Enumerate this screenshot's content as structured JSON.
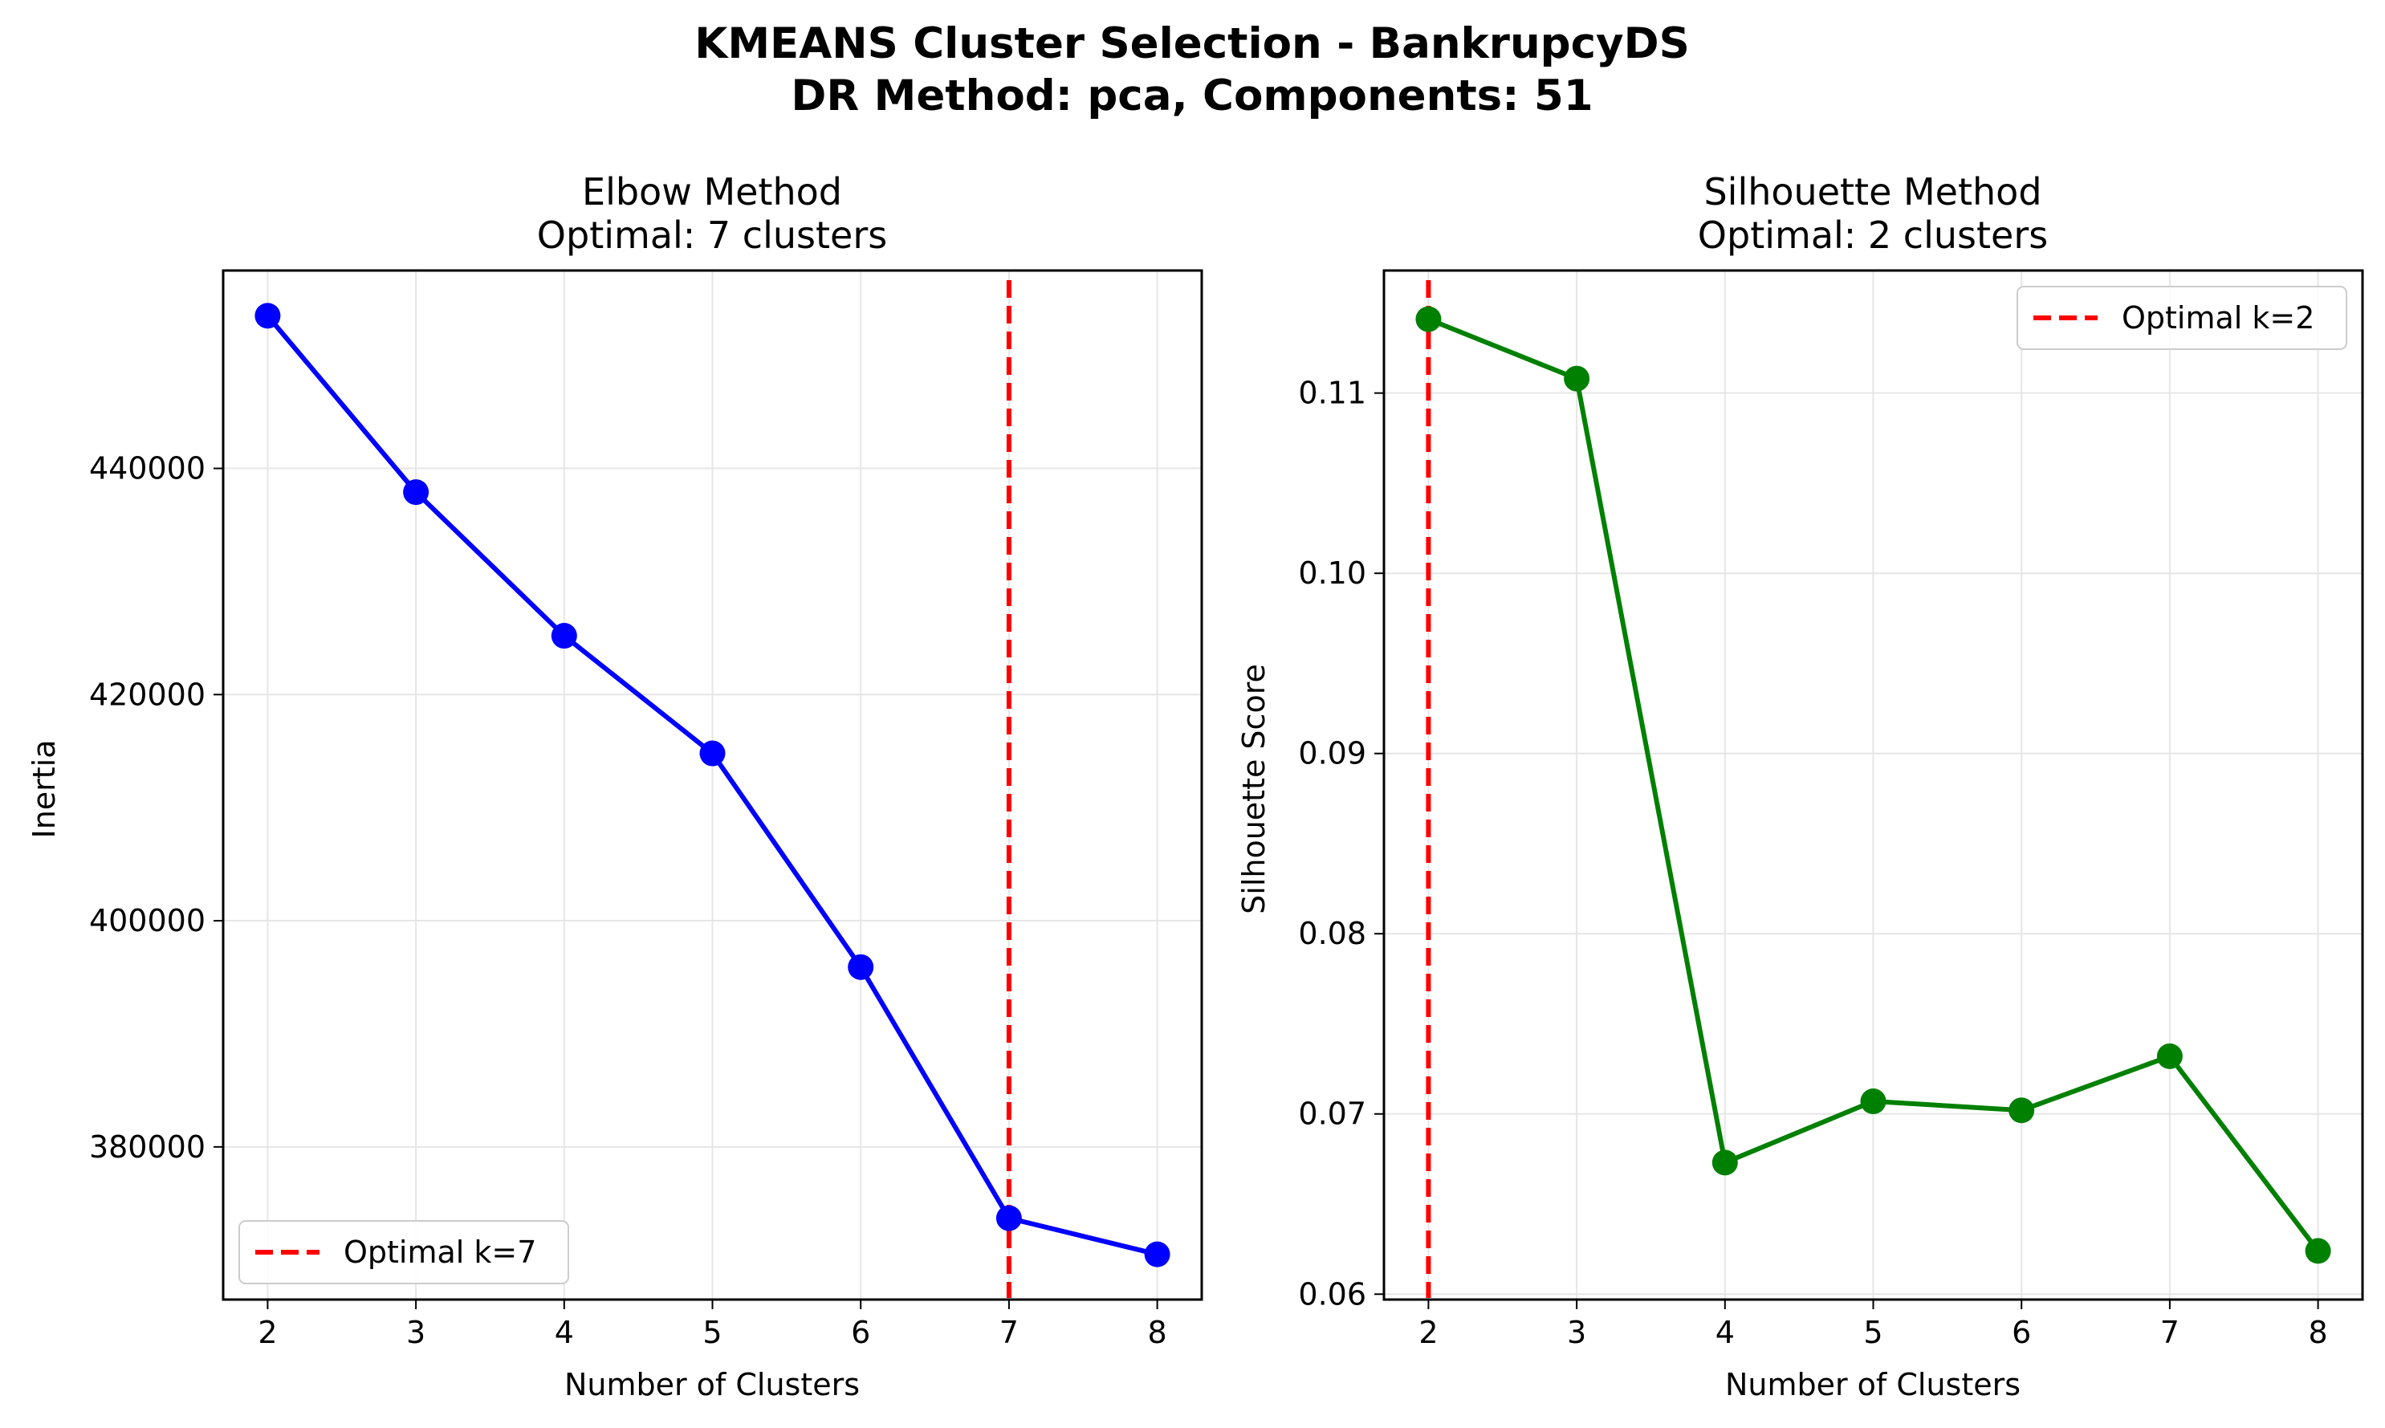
{
  "figure": {
    "suptitle_line1": "KMEANS Cluster Selection - BankrupcyDS",
    "suptitle_line2": "DR Method: pca, Components: 51"
  },
  "colors": {
    "elbow_line": "#0000ff",
    "silhouette_line": "#008000",
    "optimal_line": "#ff0000",
    "grid": "#e6e6e6",
    "axes": "#000000"
  },
  "chart_data": [
    {
      "type": "line",
      "title_line1": "Elbow Method",
      "title_line2": "Optimal: 7 clusters",
      "xlabel": "Number of Clusters",
      "ylabel": "Inertia",
      "x": [
        2,
        3,
        4,
        5,
        6,
        7,
        8
      ],
      "series": [
        {
          "values": [
            453500,
            437900,
            425200,
            414800,
            395900,
            373700,
            370500
          ]
        }
      ],
      "xlim": [
        1.7,
        8.3
      ],
      "ylim": [
        366500,
        457500
      ],
      "xticks": [
        2,
        3,
        4,
        5,
        6,
        7,
        8
      ],
      "yticks": [
        380000,
        400000,
        420000,
        440000
      ],
      "ytick_labels": [
        "380000",
        "400000",
        "420000",
        "440000"
      ],
      "optimal_k": 7,
      "legend": {
        "label": "Optimal k=7",
        "placement": "lower-left"
      },
      "grid": true
    },
    {
      "type": "line",
      "title_line1": "Silhouette Method",
      "title_line2": "Optimal: 2 clusters",
      "xlabel": "Number of Clusters",
      "ylabel": "Silhouette Score",
      "x": [
        2,
        3,
        4,
        5,
        6,
        7,
        8
      ],
      "series": [
        {
          "values": [
            0.1141,
            0.1108,
            0.0673,
            0.0707,
            0.0702,
            0.0732,
            0.0624
          ]
        }
      ],
      "xlim": [
        1.7,
        8.3
      ],
      "ylim": [
        0.0597,
        0.1168
      ],
      "xticks": [
        2,
        3,
        4,
        5,
        6,
        7,
        8
      ],
      "yticks": [
        0.06,
        0.07,
        0.08,
        0.09,
        0.1,
        0.11
      ],
      "ytick_labels": [
        "0.06",
        "0.07",
        "0.08",
        "0.09",
        "0.10",
        "0.11"
      ],
      "optimal_k": 2,
      "legend": {
        "label": "Optimal k=2",
        "placement": "upper-right"
      },
      "grid": true
    }
  ]
}
